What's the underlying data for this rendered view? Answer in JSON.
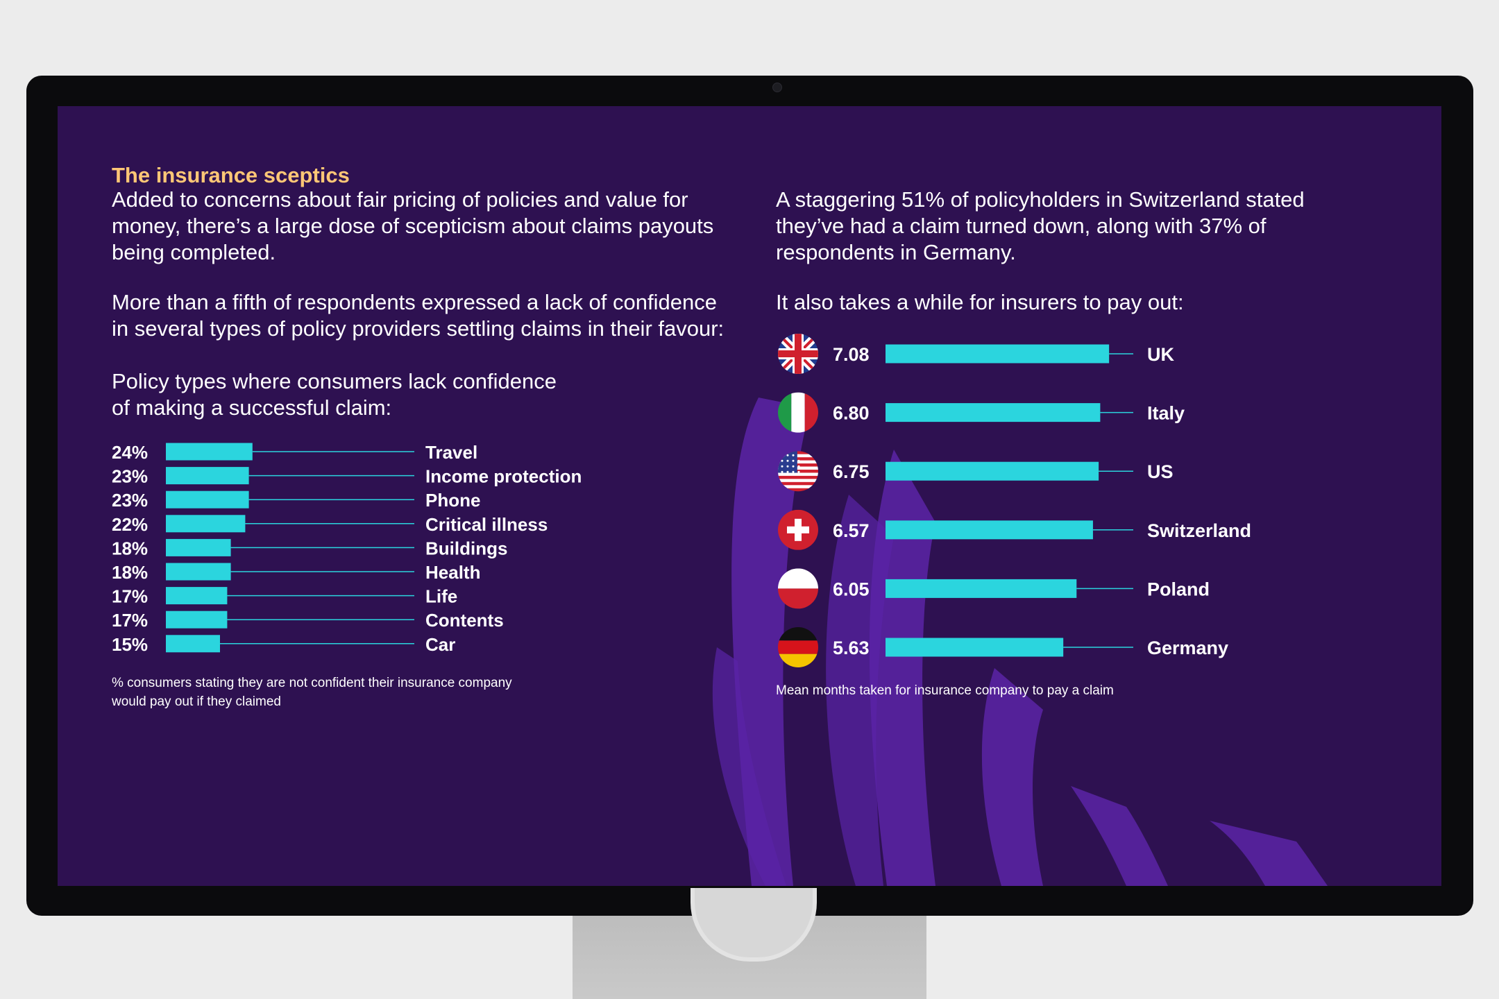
{
  "colors": {
    "screen_bg": "#2e1151",
    "accent_bar": "#2bd5de",
    "heading": "#ffc776",
    "decoration": "#5a24a6"
  },
  "page": {
    "heading": "The insurance sceptics",
    "left_para1": [
      "Added to concerns about fair pricing of policies and value for",
      "money, there’s a large dose of scepticism about claims payouts",
      "being completed."
    ],
    "left_para2": [
      "More than a fifth of respondents expressed a lack of confidence",
      "in several types of policy providers settling claims in their favour:"
    ],
    "left_chart_title": [
      "Policy types where consumers lack confidence",
      "of making a successful claim:"
    ],
    "left_caption": [
      "% consumers stating they are not confident their insurance company",
      "would pay out if they claimed"
    ],
    "right_para1": [
      "A staggering 51% of policyholders in Switzerland stated",
      "they’ve had a claim turned down, along with 37% of",
      "respondents in Germany."
    ],
    "right_para2": "It also takes a while for insurers to pay out:",
    "right_caption": "Mean months taken for insurance company to pay a claim"
  },
  "chart_data": [
    {
      "type": "bar",
      "orientation": "horizontal",
      "categories": [
        "Travel",
        "Income protection",
        "Phone",
        "Critical illness",
        "Buildings",
        "Health",
        "Life",
        "Contents",
        "Car"
      ],
      "values": [
        24,
        23,
        23,
        22,
        18,
        18,
        17,
        17,
        15
      ],
      "value_labels": [
        "24%",
        "23%",
        "23%",
        "22%",
        "18%",
        "18%",
        "17%",
        "17%",
        "15%"
      ]
    },
    {
      "type": "bar",
      "orientation": "horizontal",
      "categories": [
        "UK",
        "Italy",
        "US",
        "Switzerland",
        "Poland",
        "Germany"
      ],
      "values": [
        7.08,
        6.8,
        6.75,
        6.57,
        6.05,
        5.63
      ],
      "value_labels": [
        "7.08",
        "6.80",
        "6.75",
        "6.57",
        "6.05",
        "5.63"
      ],
      "icons": [
        "uk-flag-icon",
        "italy-flag-icon",
        "us-flag-icon",
        "switzerland-flag-icon",
        "poland-flag-icon",
        "germany-flag-icon"
      ]
    }
  ]
}
